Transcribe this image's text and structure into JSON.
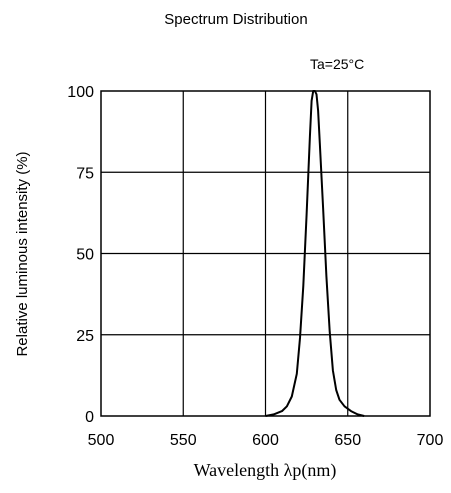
{
  "chart_data": {
    "type": "line",
    "title": "Spectrum Distribution",
    "annotation": "Ta=25°C",
    "xlabel": "Wavelength λp(nm)",
    "ylabel": "Relative luminous intensity (%)",
    "xlim": [
      500,
      700
    ],
    "ylim": [
      0,
      100
    ],
    "xticks": [
      500,
      550,
      600,
      650,
      700
    ],
    "yticks": [
      0,
      25,
      50,
      75,
      100
    ],
    "grid": true,
    "series": [
      {
        "x": [
          600,
          605,
          610,
          613,
          616,
          619,
          621,
          623,
          625,
          627,
          628,
          629,
          630,
          631,
          632,
          633,
          635,
          637,
          639,
          641,
          643,
          645,
          648,
          652,
          656,
          660
        ],
        "values": [
          0,
          0.5,
          1.5,
          3,
          6,
          13,
          24,
          40,
          62,
          86,
          97,
          100,
          100,
          99,
          94,
          84,
          64,
          43,
          26,
          14,
          8,
          5,
          3,
          1.5,
          0.5,
          0
        ]
      }
    ],
    "colors": {
      "line": "#000000",
      "axis": "#000000",
      "grid": "#000000"
    }
  }
}
